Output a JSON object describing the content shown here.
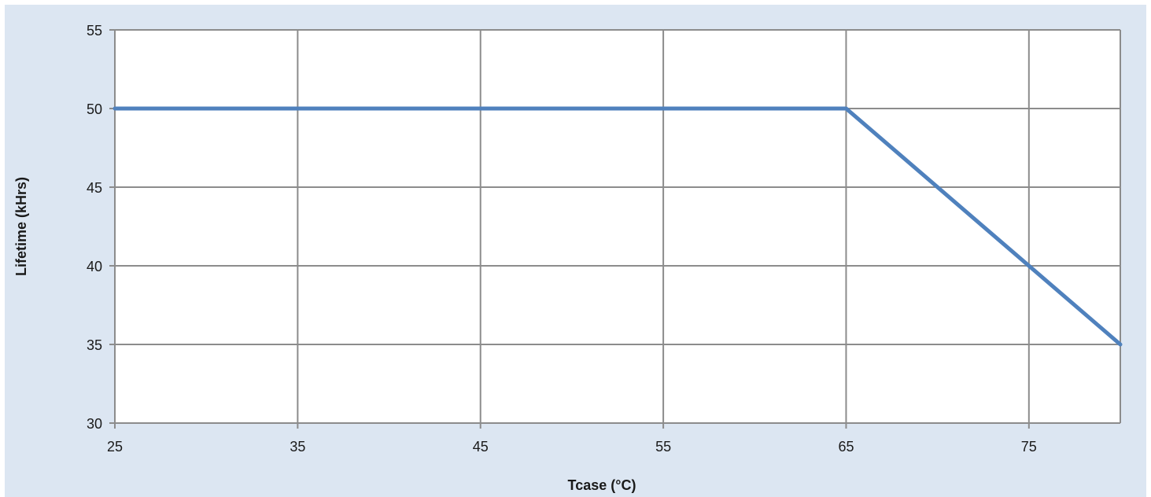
{
  "chart_data": {
    "type": "line",
    "title": "",
    "xlabel": "Tcase (°C)",
    "ylabel": "Lifetime (kHrs)",
    "x_ticks": [
      "25",
      "35",
      "45",
      "55",
      "65",
      "75"
    ],
    "y_ticks": [
      "30",
      "35",
      "40",
      "45",
      "50",
      "55"
    ],
    "xlim": [
      25,
      80
    ],
    "ylim": [
      30,
      55
    ],
    "grid": true,
    "legend": "none",
    "series": [
      {
        "color": "#4f81bd",
        "x": [
          25,
          65,
          80
        ],
        "y": [
          50,
          50,
          35
        ]
      }
    ]
  },
  "colors": {
    "frame_background": "#dce6f2",
    "plot_background": "#ffffff",
    "gridline": "#8c8c8c",
    "series_line": "#4f81bd"
  }
}
